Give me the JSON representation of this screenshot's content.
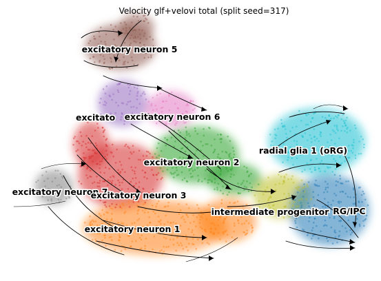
{
  "chart_data": {
    "type": "scatter",
    "title": "Velocity glf+velovi total (split seed=317)",
    "xlabel": "",
    "ylabel": "",
    "axes_visible": false,
    "grid": false,
    "overlay": "velocity streamlines with arrowheads",
    "clusters": [
      {
        "label": "excitatory neuron 5",
        "color": "#8c564b"
      },
      {
        "label": "excitatory neuron 6",
        "color": "#e377c2"
      },
      {
        "label": "excitatory neuron 4",
        "label_visible_text": "excitato",
        "color": "#9467bd"
      },
      {
        "label": "excitatory neuron 2",
        "color": "#2ca02c"
      },
      {
        "label": "excitatory neuron 3",
        "color": "#d62728"
      },
      {
        "label": "excitatory neuron 7",
        "color": "#7f7f7f"
      },
      {
        "label": "excitatory neuron 1",
        "color": "#ff7f0e"
      },
      {
        "label": "radial glia 1 (oRG)",
        "color": "#17becf"
      },
      {
        "label": "intermediate progenitor",
        "color": "#bcbd22"
      },
      {
        "label": "RG/IPC",
        "color": "#1f77b4"
      }
    ]
  },
  "labels": {
    "title": "Velocity glf+velovi total (split seed=317)",
    "en5": "excitatory neuron 5",
    "excitato": "excitato",
    "en6": "excitatory neuron 6",
    "en2": "excitatory neuron 2",
    "rg1": "radial glia 1 (oRG)",
    "en7": "excitatory neuron 7",
    "en3": "excitatory neuron 3",
    "ip": "intermediate progenitor",
    "rgipc": "RG/IPC",
    "en1": "excitatory neuron 1"
  }
}
